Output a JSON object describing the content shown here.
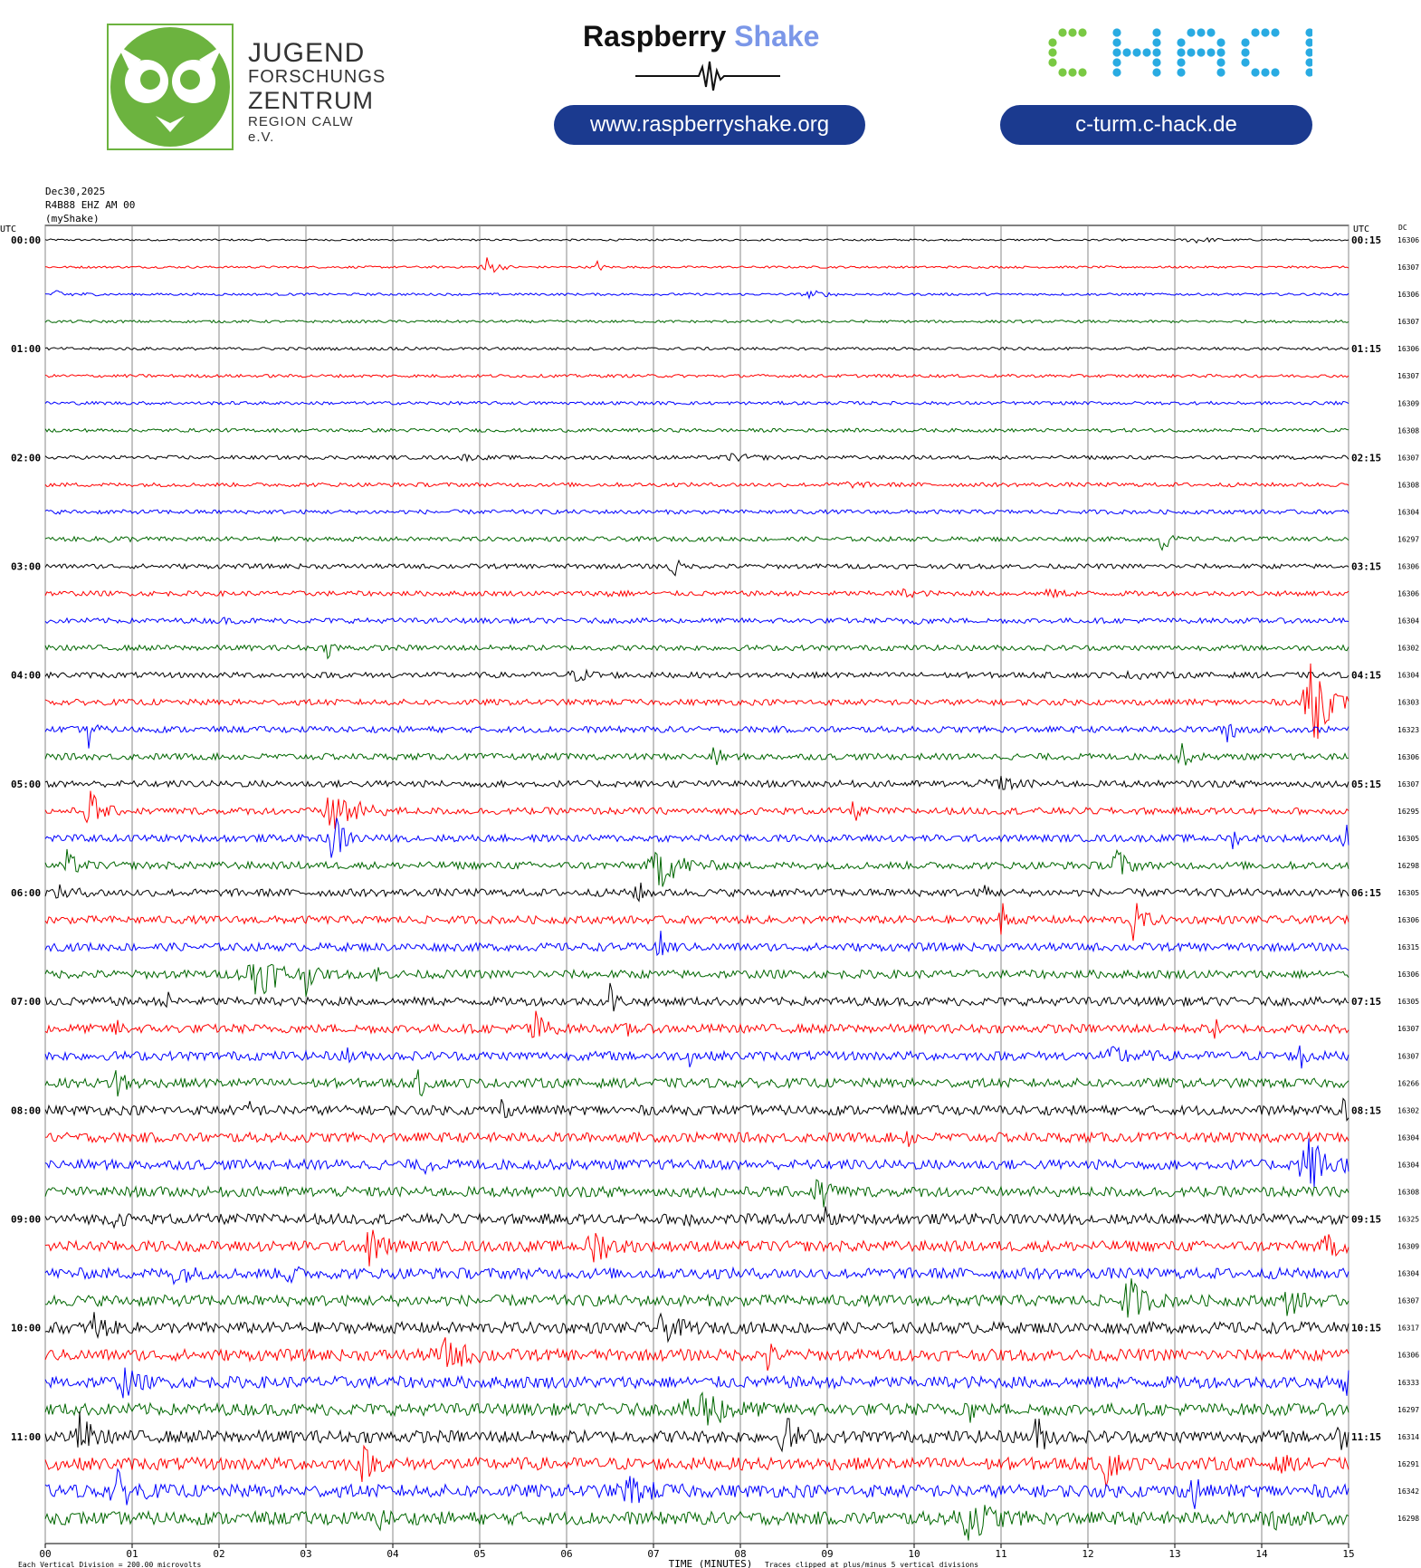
{
  "logos": {
    "jfz": {
      "line1": "JUGEND",
      "line2": "FORSCHUNGS",
      "line3": "ZENTRUM",
      "line4": "REGION CALW e.V.",
      "color": "#6cb33f"
    },
    "raspberry_shake": {
      "word1": "Raspberry",
      "word2": "Shake",
      "url": "www.raspberryshake.org"
    },
    "chack": {
      "wordmark": "CHACK",
      "url": "c-turm.c-hack.de",
      "colors": [
        "#7ac943",
        "#29abe2"
      ]
    }
  },
  "header": {
    "date": "Dec30,2025",
    "station": "R4B88 EHZ AM 00",
    "source": "(myShake)"
  },
  "chart_data": {
    "type": "line",
    "subtype": "helicorder",
    "left_axis_label": "UTC",
    "right_axis_label": "UTC",
    "dc_label": "DC",
    "xlabel": "TIME (MINUTES)",
    "xlim": [
      0,
      15
    ],
    "x_ticks": [
      "00",
      "01",
      "02",
      "03",
      "04",
      "05",
      "06",
      "07",
      "08",
      "09",
      "10",
      "11",
      "12",
      "13",
      "14",
      "15"
    ],
    "trace_colors": [
      "#000000",
      "#ff0000",
      "#0000ff",
      "#006600"
    ],
    "rows_minutes_each": 15,
    "left_hour_labels": [
      "00:00",
      "01:00",
      "02:00",
      "03:00",
      "04:00",
      "05:00",
      "06:00",
      "07:00",
      "08:00",
      "09:00",
      "10:00",
      "11:00"
    ],
    "right_hour_labels": [
      "00:15",
      "01:15",
      "02:15",
      "03:15",
      "04:15",
      "05:15",
      "06:15",
      "07:15",
      "08:15",
      "09:15",
      "10:15",
      "11:15"
    ],
    "dc_values": [
      "16306",
      "16307",
      "16306",
      "16307",
      "16306",
      "16307",
      "16309",
      "16308",
      "16307",
      "16308",
      "16304",
      "16297",
      "16306",
      "16306",
      "16304",
      "16302",
      "16304",
      "16303",
      "16323",
      "16306",
      "16307",
      "16295",
      "16305",
      "16298",
      "16305",
      "16306",
      "16315",
      "16306",
      "16305",
      "16307",
      "16307",
      "16266",
      "16302",
      "16304",
      "16304",
      "16308",
      "16325",
      "16309",
      "16304",
      "16307",
      "16317",
      "16306",
      "16333",
      "16297",
      "16314",
      "16291",
      "16342",
      "16298"
    ],
    "events": [
      {
        "row": 0,
        "min": 13.2,
        "amp": 0.2,
        "dur": 0.4
      },
      {
        "row": 1,
        "min": 5.05,
        "amp": 0.9,
        "dur": 0.2
      },
      {
        "row": 1,
        "min": 6.35,
        "amp": 0.4,
        "dur": 0.1
      },
      {
        "row": 2,
        "min": 0.15,
        "amp": 0.3,
        "dur": 0.3
      },
      {
        "row": 2,
        "min": 8.8,
        "amp": 0.25,
        "dur": 0.3
      },
      {
        "row": 4,
        "min": 4.05,
        "amp": 0.1,
        "dur": 0.2
      },
      {
        "row": 8,
        "min": 4.8,
        "amp": 0.15,
        "dur": 0.3
      },
      {
        "row": 8,
        "min": 7.9,
        "amp": 0.2,
        "dur": 0.4
      },
      {
        "row": 9,
        "min": 9.2,
        "amp": 0.15,
        "dur": 0.4
      },
      {
        "row": 11,
        "min": 0.7,
        "amp": 0.15,
        "dur": 0.4
      },
      {
        "row": 11,
        "min": 12.85,
        "amp": 1.3,
        "dur": 0.1
      },
      {
        "row": 12,
        "min": 7.2,
        "amp": 1.4,
        "dur": 0.1
      },
      {
        "row": 13,
        "min": 6.45,
        "amp": 0.2,
        "dur": 0.3
      },
      {
        "row": 13,
        "min": 9.85,
        "amp": 0.2,
        "dur": 0.3
      },
      {
        "row": 13,
        "min": 11.55,
        "amp": 0.2,
        "dur": 0.3
      },
      {
        "row": 14,
        "min": 2.0,
        "amp": 0.1,
        "dur": 0.3
      },
      {
        "row": 14,
        "min": 9.9,
        "amp": 0.2,
        "dur": 0.3
      },
      {
        "row": 15,
        "min": 3.25,
        "amp": 0.5,
        "dur": 0.15
      },
      {
        "row": 16,
        "min": 6.1,
        "amp": 0.3,
        "dur": 0.4
      },
      {
        "row": 16,
        "min": 12.5,
        "amp": 0.15,
        "dur": 0.4
      },
      {
        "row": 17,
        "min": 14.55,
        "amp": 4.0,
        "dur": 0.3
      },
      {
        "row": 18,
        "min": 0.5,
        "amp": 1.2,
        "dur": 0.1
      },
      {
        "row": 18,
        "min": 13.6,
        "amp": 1.5,
        "dur": 0.15
      },
      {
        "row": 19,
        "min": 7.7,
        "amp": 1.0,
        "dur": 0.1
      },
      {
        "row": 19,
        "min": 13.05,
        "amp": 1.0,
        "dur": 0.15
      },
      {
        "row": 20,
        "min": 10.9,
        "amp": 0.5,
        "dur": 0.4
      },
      {
        "row": 21,
        "min": 0.5,
        "amp": 1.6,
        "dur": 0.2
      },
      {
        "row": 21,
        "min": 3.3,
        "amp": 1.8,
        "dur": 0.4
      },
      {
        "row": 21,
        "min": 9.3,
        "amp": 0.8,
        "dur": 0.1
      },
      {
        "row": 22,
        "min": 3.3,
        "amp": 2.0,
        "dur": 0.2
      },
      {
        "row": 22,
        "min": 14.95,
        "amp": 1.2,
        "dur": 0.1
      },
      {
        "row": 22,
        "min": 13.65,
        "amp": 0.8,
        "dur": 0.1
      },
      {
        "row": 23,
        "min": 0.25,
        "amp": 0.8,
        "dur": 0.2
      },
      {
        "row": 23,
        "min": 7.05,
        "amp": 1.5,
        "dur": 0.4
      },
      {
        "row": 23,
        "min": 12.3,
        "amp": 1.5,
        "dur": 0.2
      },
      {
        "row": 24,
        "min": 0.15,
        "amp": 0.3,
        "dur": 0.3
      },
      {
        "row": 24,
        "min": 6.8,
        "amp": 1.2,
        "dur": 0.1
      },
      {
        "row": 24,
        "min": 10.8,
        "amp": 0.8,
        "dur": 0.1
      },
      {
        "row": 25,
        "min": 11.0,
        "amp": 1.5,
        "dur": 0.1
      },
      {
        "row": 25,
        "min": 12.5,
        "amp": 1.5,
        "dur": 0.2
      },
      {
        "row": 26,
        "min": 7.05,
        "amp": 1.2,
        "dur": 0.15
      },
      {
        "row": 27,
        "min": 2.4,
        "amp": 1.5,
        "dur": 0.5
      },
      {
        "row": 27,
        "min": 3.0,
        "amp": 1.0,
        "dur": 0.1
      },
      {
        "row": 27,
        "min": 3.8,
        "amp": 0.6,
        "dur": 0.1
      },
      {
        "row": 28,
        "min": 6.5,
        "amp": 1.2,
        "dur": 0.1
      },
      {
        "row": 28,
        "min": 1.4,
        "amp": 0.5,
        "dur": 0.1
      },
      {
        "row": 29,
        "min": 0.8,
        "amp": 0.8,
        "dur": 0.1
      },
      {
        "row": 29,
        "min": 5.6,
        "amp": 1.5,
        "dur": 0.2
      },
      {
        "row": 29,
        "min": 6.7,
        "amp": 0.5,
        "dur": 0.1
      },
      {
        "row": 29,
        "min": 13.45,
        "amp": 0.6,
        "dur": 0.1
      },
      {
        "row": 30,
        "min": 3.45,
        "amp": 1.0,
        "dur": 0.1
      },
      {
        "row": 30,
        "min": 7.4,
        "amp": 0.6,
        "dur": 0.1
      },
      {
        "row": 30,
        "min": 12.3,
        "amp": 0.5,
        "dur": 0.4
      },
      {
        "row": 30,
        "min": 14.45,
        "amp": 1.5,
        "dur": 0.1
      },
      {
        "row": 31,
        "min": 0.8,
        "amp": 1.2,
        "dur": 0.2
      },
      {
        "row": 31,
        "min": 4.3,
        "amp": 1.1,
        "dur": 0.1
      },
      {
        "row": 32,
        "min": 2.35,
        "amp": 0.8,
        "dur": 0.1
      },
      {
        "row": 32,
        "min": 5.25,
        "amp": 0.6,
        "dur": 0.1
      },
      {
        "row": 32,
        "min": 14.95,
        "amp": 1.2,
        "dur": 0.1
      },
      {
        "row": 33,
        "min": 9.9,
        "amp": 0.9,
        "dur": 0.1
      },
      {
        "row": 34,
        "min": 14.5,
        "amp": 2.0,
        "dur": 0.4
      },
      {
        "row": 34,
        "min": 4.35,
        "amp": 0.6,
        "dur": 0.1
      },
      {
        "row": 35,
        "min": 8.9,
        "amp": 1.5,
        "dur": 0.2
      },
      {
        "row": 36,
        "min": 0.8,
        "amp": 0.8,
        "dur": 0.1
      },
      {
        "row": 36,
        "min": 7.35,
        "amp": 1.0,
        "dur": 0.1
      },
      {
        "row": 36,
        "min": 8.95,
        "amp": 1.0,
        "dur": 0.1
      },
      {
        "row": 37,
        "min": 3.7,
        "amp": 1.2,
        "dur": 0.3
      },
      {
        "row": 37,
        "min": 6.3,
        "amp": 1.2,
        "dur": 0.3
      },
      {
        "row": 37,
        "min": 14.75,
        "amp": 0.8,
        "dur": 0.2
      },
      {
        "row": 38,
        "min": 2.8,
        "amp": 1.2,
        "dur": 0.1
      },
      {
        "row": 38,
        "min": 1.5,
        "amp": 0.8,
        "dur": 0.2
      },
      {
        "row": 39,
        "min": 12.45,
        "amp": 1.5,
        "dur": 0.3
      },
      {
        "row": 39,
        "min": 14.3,
        "amp": 1.0,
        "dur": 0.2
      },
      {
        "row": 40,
        "min": 0.55,
        "amp": 1.0,
        "dur": 0.2
      },
      {
        "row": 40,
        "min": 7.1,
        "amp": 0.8,
        "dur": 0.3
      },
      {
        "row": 41,
        "min": 4.6,
        "amp": 0.8,
        "dur": 0.5
      },
      {
        "row": 41,
        "min": 8.3,
        "amp": 1.2,
        "dur": 0.1
      },
      {
        "row": 42,
        "min": 0.9,
        "amp": 1.0,
        "dur": 0.2
      },
      {
        "row": 42,
        "min": 14.95,
        "amp": 1.5,
        "dur": 0.1
      },
      {
        "row": 43,
        "min": 7.5,
        "amp": 1.5,
        "dur": 0.5
      },
      {
        "row": 43,
        "min": 10.6,
        "amp": 1.5,
        "dur": 0.1
      },
      {
        "row": 44,
        "min": 0.4,
        "amp": 1.5,
        "dur": 0.2
      },
      {
        "row": 44,
        "min": 8.5,
        "amp": 1.5,
        "dur": 0.2
      },
      {
        "row": 44,
        "min": 11.4,
        "amp": 1.2,
        "dur": 0.2
      },
      {
        "row": 44,
        "min": 14.9,
        "amp": 0.6,
        "dur": 0.3
      },
      {
        "row": 45,
        "min": 3.65,
        "amp": 1.0,
        "dur": 0.2
      },
      {
        "row": 45,
        "min": 12.2,
        "amp": 1.3,
        "dur": 0.2
      },
      {
        "row": 45,
        "min": 14.2,
        "amp": 1.0,
        "dur": 0.1
      },
      {
        "row": 46,
        "min": 0.8,
        "amp": 1.2,
        "dur": 0.3
      },
      {
        "row": 46,
        "min": 6.7,
        "amp": 0.8,
        "dur": 0.4
      },
      {
        "row": 46,
        "min": 13.2,
        "amp": 1.8,
        "dur": 0.1
      },
      {
        "row": 47,
        "min": 3.85,
        "amp": 0.8,
        "dur": 0.1
      },
      {
        "row": 47,
        "min": 10.6,
        "amp": 1.5,
        "dur": 0.4
      },
      {
        "row": 47,
        "min": 14.1,
        "amp": 1.2,
        "dur": 0.2
      }
    ],
    "footer_left": "Each Vertical Division =  200.00 microvolts",
    "footer_right": "Traces clipped at plus/minus 5 vertical divisions"
  },
  "colors": {
    "grid": "#888888",
    "pill": "#1b3a8f",
    "jfz_green": "#6cb33f",
    "rs_blue": "#7b97e8"
  }
}
